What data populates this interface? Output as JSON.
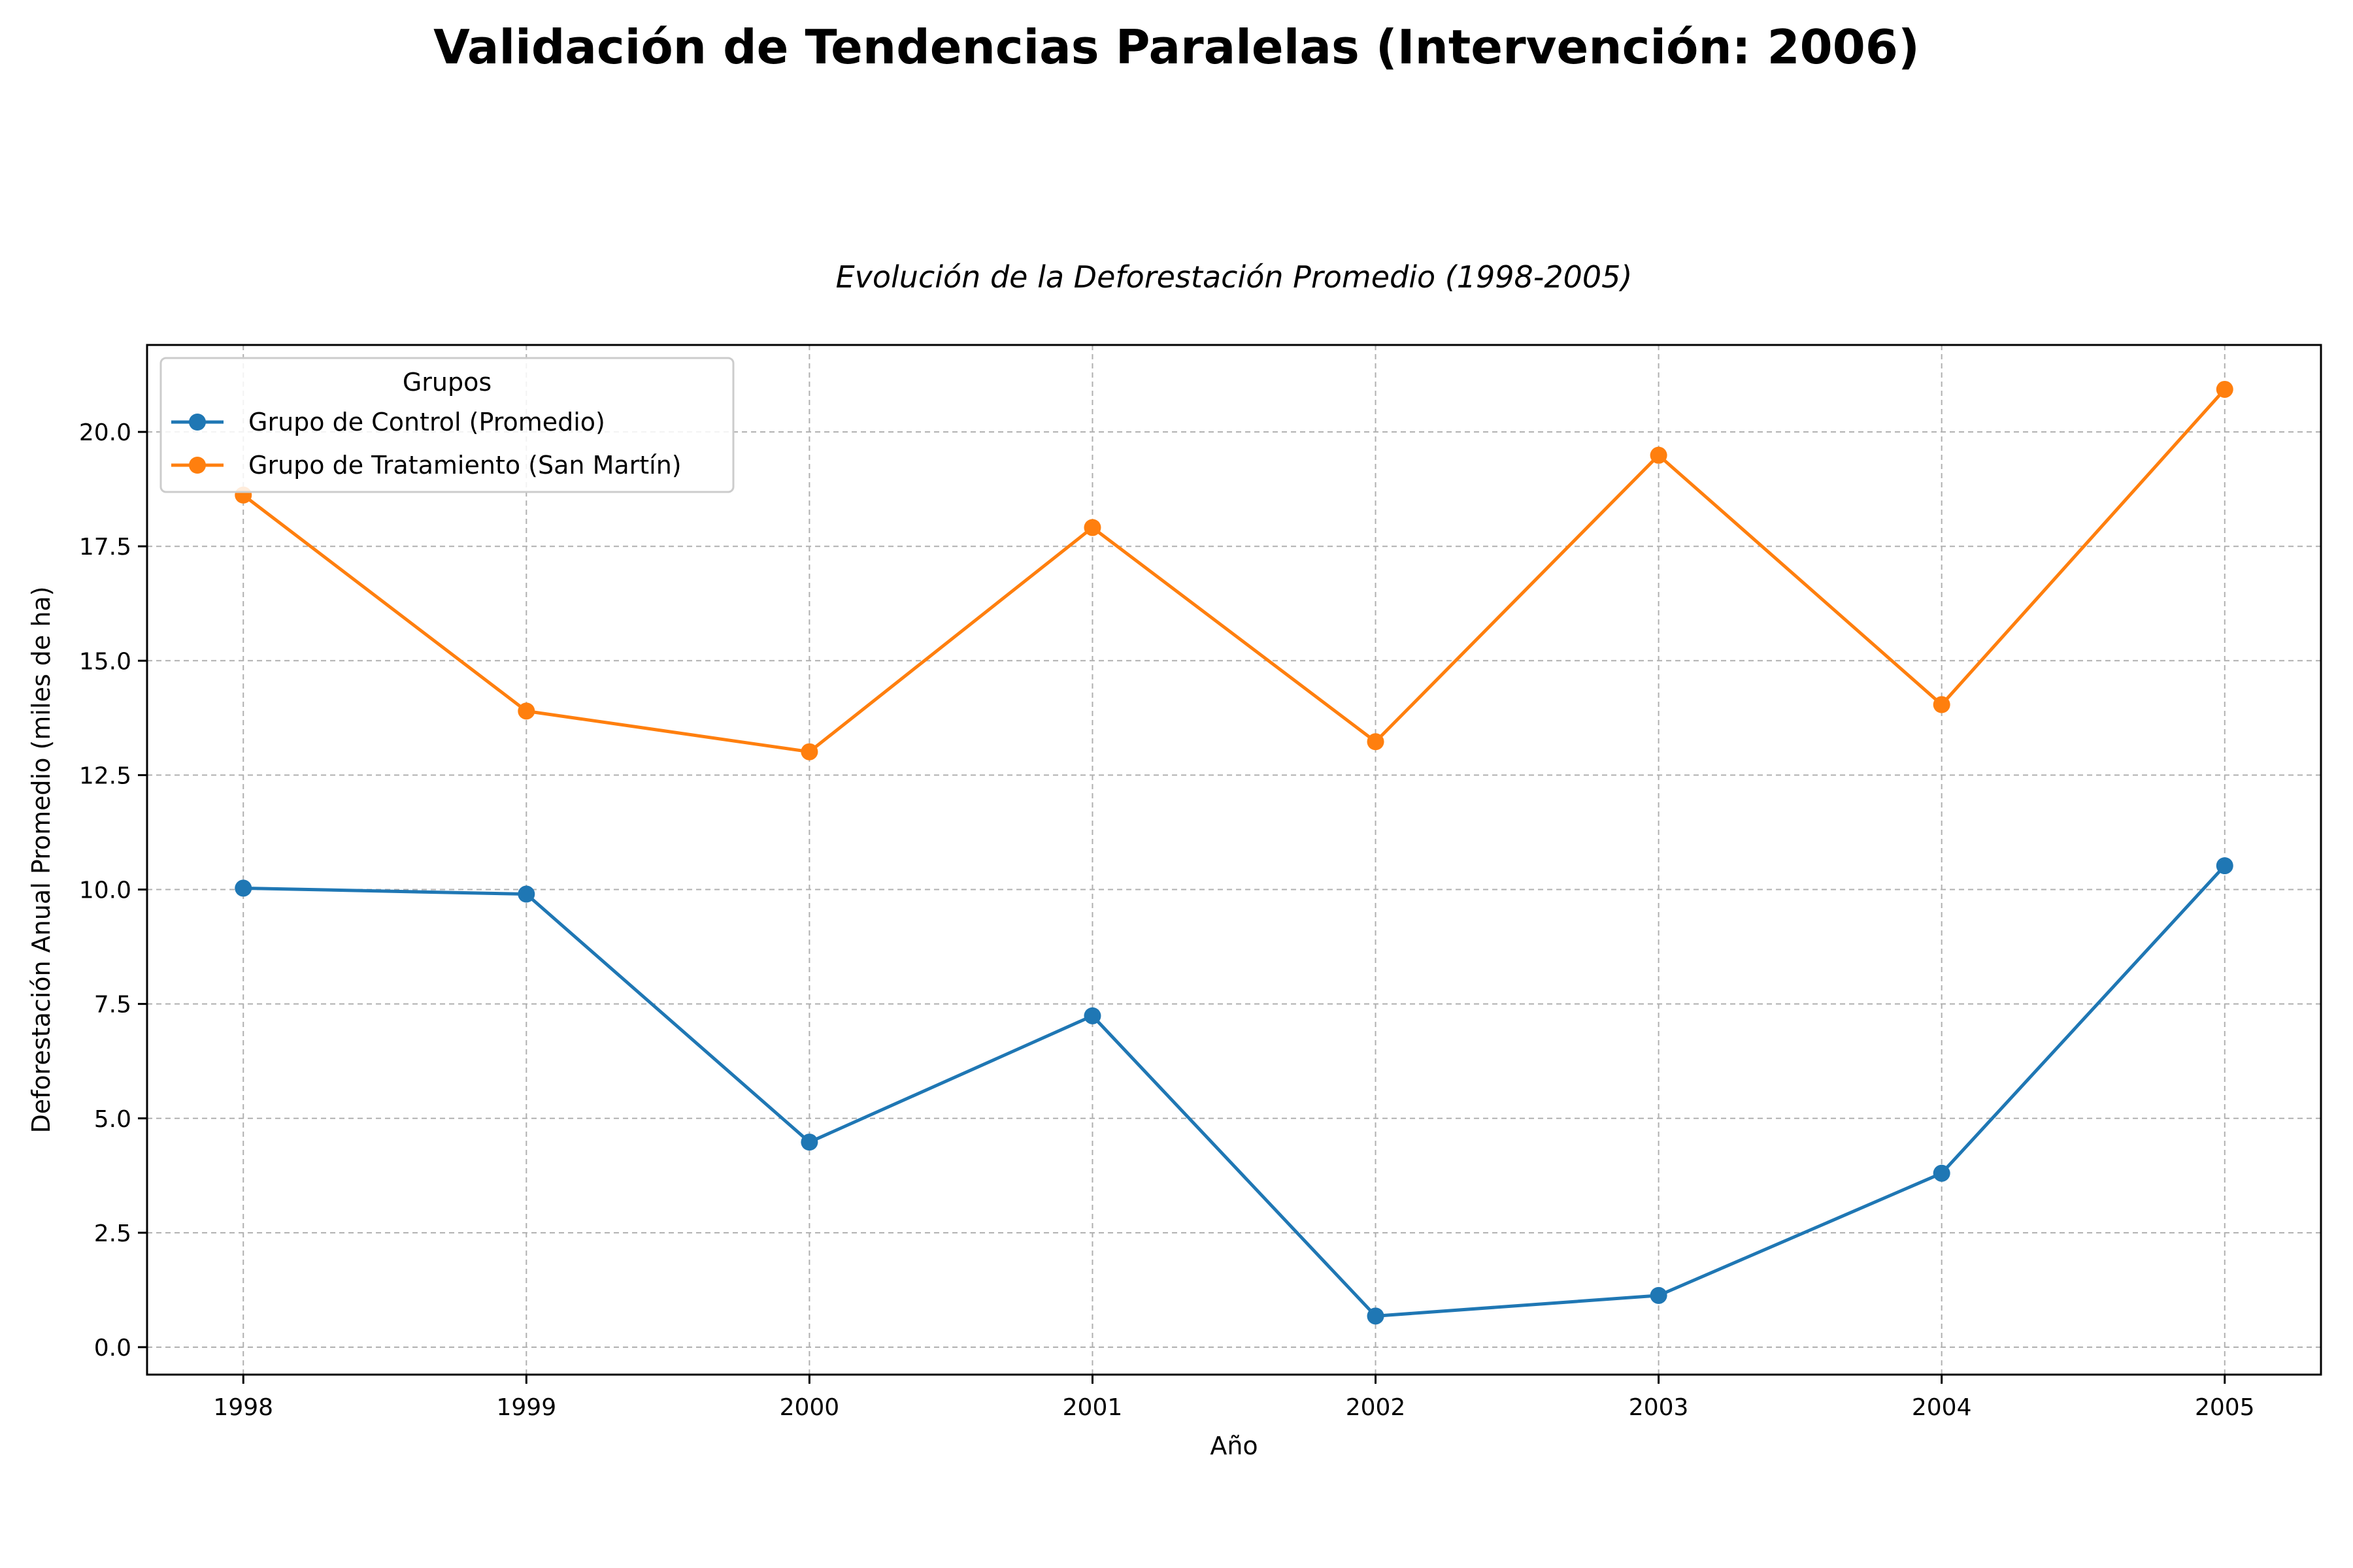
{
  "suptitle": "Validación de Tendencias Paralelas (Intervención: 2006)",
  "chart_data": {
    "type": "line",
    "title": "Evolución de la Deforestación Promedio (1998-2005)",
    "xlabel": "Año",
    "ylabel": "Deforestación Anual Promedio (miles de ha)",
    "x": [
      1998,
      1999,
      2000,
      2001,
      2002,
      2003,
      2004,
      2005
    ],
    "xlim": [
      1997.66,
      2005.34
    ],
    "ylim": [
      -0.6,
      21.9
    ],
    "yticks": [
      0.0,
      2.5,
      5.0,
      7.5,
      10.0,
      12.5,
      15.0,
      17.5,
      20.0
    ],
    "grid": true,
    "legend": {
      "title": "Grupos",
      "placement": "upper left"
    },
    "series": [
      {
        "name": "Grupo de Control (Promedio)",
        "color": "#1f77b4",
        "values": [
          10.03,
          9.9,
          4.48,
          7.24,
          0.68,
          1.13,
          3.8,
          10.52
        ]
      },
      {
        "name": "Grupo de Tratamiento (San Martín)",
        "color": "#ff7f0e",
        "values": [
          18.62,
          13.9,
          13.01,
          17.91,
          13.23,
          19.49,
          14.04,
          20.93
        ]
      }
    ]
  }
}
